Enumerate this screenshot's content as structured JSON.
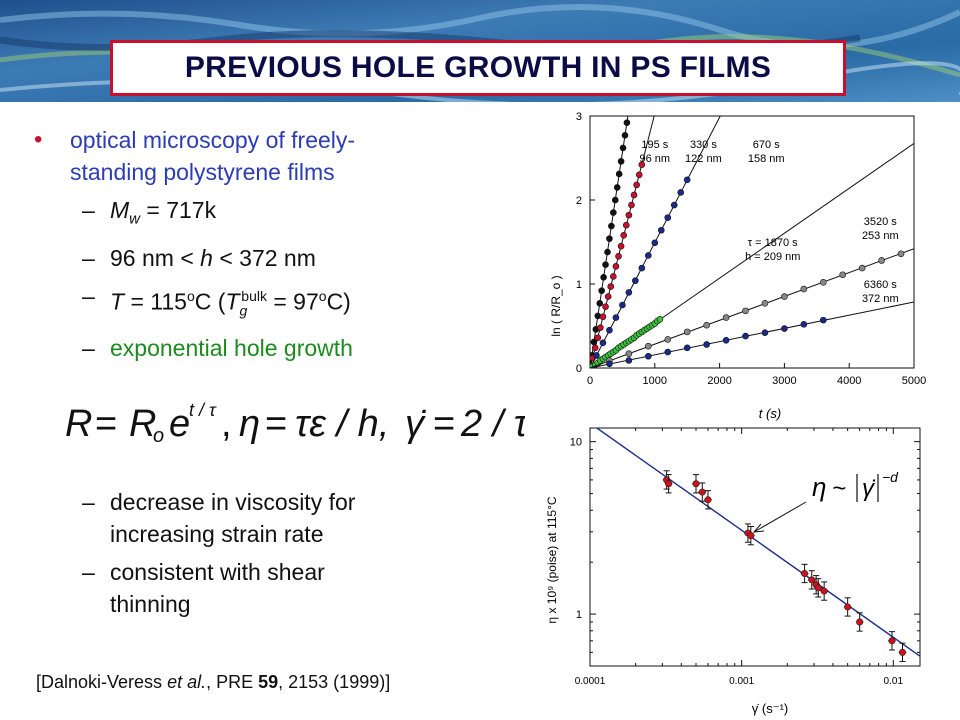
{
  "slide": {
    "title": "PREVIOUS HOLE GROWTH IN PS FILMS",
    "bullet_main_line1": "optical microscopy of freely-",
    "bullet_main_line2": "standing polystyrene films",
    "sub1": {
      "sym": "M",
      "sub": "w",
      "rest": " = 717k"
    },
    "sub2": {
      "pre": "96 nm < ",
      "sym": "h",
      "rest": " < 372 nm"
    },
    "sub3": {
      "sym": "T",
      "eq": " = 115",
      "deg": "o",
      "unit": "C (",
      "tsym": "T",
      "tsub": "g",
      "tsup": "bulk",
      "rest1": " = 97",
      "deg2": "o",
      "rest2": "C)"
    },
    "sub4": "exponential  hole growth",
    "sub5_line1": "decrease in viscosity for",
    "sub5_line2": "increasing strain rate",
    "sub6_line1": "consistent with shear",
    "sub6_line2": "thinning",
    "dash": "–",
    "bullet": "•",
    "citation": {
      "open": "[Dalnoki-Veress ",
      "etal": "et al.",
      "mid": ", PRE ",
      "vol": "59",
      "rest": ", 2153 (1999)]"
    },
    "equation": {
      "R": "R",
      "eq1": "=",
      "Ro": "R",
      "o": "o",
      "e": "e",
      "exp": "t / τ",
      "comma1": ",",
      "eta": "η",
      "eq2": "=",
      "rhs2": "τε / h,",
      "gdot": "γ̇",
      "eq3": "=",
      "rhs3": "2 / τ"
    }
  },
  "chart_data": [
    {
      "type": "scatter",
      "title": "",
      "xlabel": "t (s)",
      "ylabel": "ln ( R/R_o )",
      "xlim": [
        0,
        5000
      ],
      "ylim": [
        0,
        3
      ],
      "xticks": [
        0,
        1000,
        2000,
        3000,
        4000,
        5000
      ],
      "yticks": [
        0,
        1,
        2,
        3
      ],
      "grid": false,
      "series": [
        {
          "color": "#111111",
          "tau": 195,
          "x": [
            30,
            60,
            90,
            120,
            150,
            180,
            210,
            240,
            270,
            300,
            330,
            360,
            390,
            420,
            450,
            480,
            510,
            540,
            570
          ],
          "y": [
            0.15,
            0.31,
            0.46,
            0.62,
            0.77,
            0.92,
            1.08,
            1.23,
            1.38,
            1.54,
            1.69,
            1.85,
            2.0,
            2.15,
            2.31,
            2.46,
            2.62,
            2.77,
            2.92
          ]
        },
        {
          "color": "#c8102e",
          "tau": 330,
          "x": [
            40,
            80,
            120,
            160,
            200,
            240,
            280,
            320,
            360,
            400,
            440,
            480,
            520,
            560,
            600,
            640,
            680,
            720,
            760,
            800
          ],
          "y": [
            0.12,
            0.24,
            0.36,
            0.48,
            0.61,
            0.73,
            0.85,
            0.97,
            1.09,
            1.21,
            1.33,
            1.45,
            1.58,
            1.7,
            1.82,
            1.94,
            2.06,
            2.18,
            2.3,
            2.42
          ]
        },
        {
          "color": "#1a2a8a",
          "tau": 670,
          "x": [
            100,
            200,
            300,
            400,
            500,
            600,
            700,
            800,
            900,
            1000,
            1100,
            1200,
            1300,
            1400,
            1500
          ],
          "y": [
            0.15,
            0.3,
            0.45,
            0.6,
            0.75,
            0.9,
            1.04,
            1.19,
            1.34,
            1.49,
            1.64,
            1.79,
            1.94,
            2.09,
            2.24
          ]
        },
        {
          "color": "#3cc43c",
          "tau": 1870,
          "x": [
            40,
            80,
            120,
            160,
            200,
            240,
            280,
            320,
            360,
            400,
            440,
            480,
            520,
            560,
            600,
            640,
            680,
            720,
            760,
            800,
            840,
            880,
            920,
            960,
            1000,
            1040,
            1080
          ],
          "y": [
            0.02,
            0.04,
            0.06,
            0.09,
            0.11,
            0.13,
            0.15,
            0.17,
            0.19,
            0.21,
            0.24,
            0.26,
            0.28,
            0.3,
            0.32,
            0.34,
            0.36,
            0.39,
            0.41,
            0.43,
            0.45,
            0.47,
            0.49,
            0.51,
            0.53,
            0.56,
            0.58
          ]
        },
        {
          "color": "#888888",
          "tau": 3520,
          "x": [
            300,
            600,
            900,
            1200,
            1500,
            1800,
            2100,
            2400,
            2700,
            3000,
            3300,
            3600,
            3900,
            4200,
            4500,
            4800
          ],
          "y": [
            0.09,
            0.17,
            0.26,
            0.34,
            0.43,
            0.51,
            0.6,
            0.68,
            0.77,
            0.85,
            0.94,
            1.02,
            1.11,
            1.19,
            1.28,
            1.36
          ]
        },
        {
          "color": "#1a2a8a",
          "tau": 6360,
          "x": [
            300,
            600,
            900,
            1200,
            1500,
            1800,
            2100,
            2400,
            2700,
            3000,
            3300,
            3600
          ],
          "y": [
            0.05,
            0.09,
            0.14,
            0.19,
            0.24,
            0.28,
            0.33,
            0.38,
            0.42,
            0.47,
            0.52,
            0.57
          ]
        }
      ],
      "annotations": [
        {
          "line1": "195 s",
          "line2": "96 nm"
        },
        {
          "line1": "330 s",
          "line2": "122 nm"
        },
        {
          "line1": "670 s",
          "line2": "158 nm"
        },
        {
          "line1": "τ = 1870 s",
          "line2": "h = 209 nm"
        },
        {
          "line1": "3520 s",
          "line2": "253 nm"
        },
        {
          "line1": "6360 s",
          "line2": "372 nm"
        }
      ]
    },
    {
      "type": "scatter",
      "title": "",
      "xscale": "log",
      "yscale": "log",
      "xlabel": "γ̇ (s⁻¹)",
      "ylabel": "η x 10⁹ (poise) at 115°C",
      "xlim": [
        0.0001,
        0.015
      ],
      "ylim": [
        0.5,
        12
      ],
      "xticks": [
        0.0001,
        0.001,
        0.01
      ],
      "xticklabels": [
        "0.0001",
        "0.001",
        "0.01"
      ],
      "yticks": [
        1,
        10
      ],
      "yticklabels": [
        "1",
        "10"
      ],
      "points": [
        {
          "x": 0.00032,
          "y": 6.0
        },
        {
          "x": 0.00033,
          "y": 5.7
        },
        {
          "x": 0.0005,
          "y": 5.7
        },
        {
          "x": 0.00055,
          "y": 5.1
        },
        {
          "x": 0.0006,
          "y": 4.6
        },
        {
          "x": 0.0011,
          "y": 2.95
        },
        {
          "x": 0.00115,
          "y": 2.85
        },
        {
          "x": 0.0026,
          "y": 1.72
        },
        {
          "x": 0.0029,
          "y": 1.58
        },
        {
          "x": 0.0031,
          "y": 1.48
        },
        {
          "x": 0.0032,
          "y": 1.42
        },
        {
          "x": 0.0035,
          "y": 1.36
        },
        {
          "x": 0.005,
          "y": 1.1
        },
        {
          "x": 0.006,
          "y": 0.9
        },
        {
          "x": 0.0098,
          "y": 0.7
        },
        {
          "x": 0.0115,
          "y": 0.6
        }
      ],
      "fit": {
        "x": [
          0.0001,
          0.015
        ],
        "y": [
          12.8,
          0.57
        ]
      },
      "annotation": {
        "eta": "η",
        "sim": "~",
        "gdot": "γ̇",
        "exp": "−d"
      }
    }
  ]
}
